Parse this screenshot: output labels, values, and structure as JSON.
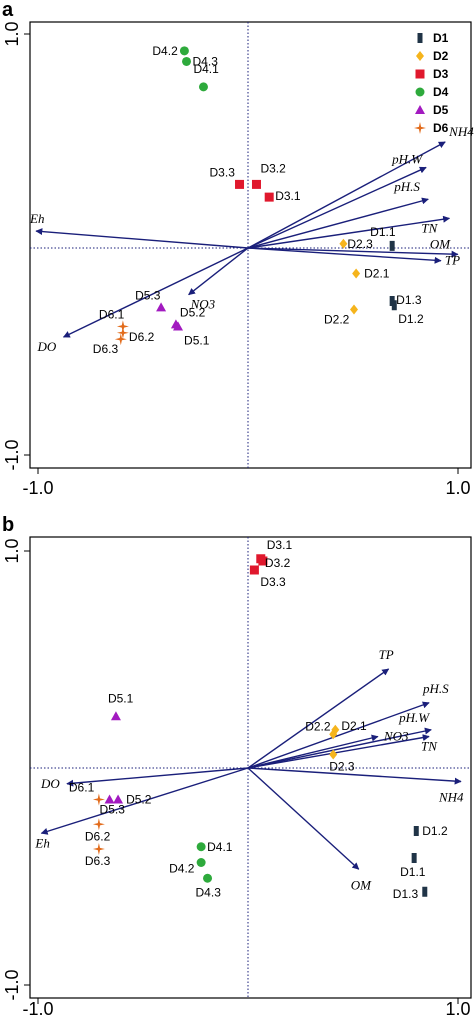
{
  "chart_data": [
    {
      "type": "scatter",
      "panel": "a",
      "xlim": [
        -1.0,
        1.0
      ],
      "ylim": [
        -1.0,
        1.0
      ],
      "xticks": [
        "-1.0",
        "1.0"
      ],
      "yticks": [
        "-1.0",
        "1.0"
      ],
      "legend": {
        "position": "top-right",
        "entries": [
          {
            "label": "D1",
            "marker": "bar",
            "color": "#203447"
          },
          {
            "label": "D2",
            "marker": "diamond",
            "color": "#f5b41c"
          },
          {
            "label": "D3",
            "marker": "square",
            "color": "#e0182d"
          },
          {
            "label": "D4",
            "marker": "circle",
            "color": "#2eaa3c"
          },
          {
            "label": "D5",
            "marker": "triangle",
            "color": "#a21ac0"
          },
          {
            "label": "D6",
            "marker": "star",
            "color": "#e26b1b"
          }
        ]
      },
      "vectors": [
        {
          "label": "NH4",
          "x": 0.93,
          "y": 0.5
        },
        {
          "label": "pH.W",
          "x": 0.84,
          "y": 0.38
        },
        {
          "label": "pH.S",
          "x": 0.85,
          "y": 0.23
        },
        {
          "label": "TN",
          "x": 0.95,
          "y": 0.14
        },
        {
          "label": "OM",
          "x": 0.99,
          "y": -0.03
        },
        {
          "label": "TP",
          "x": 0.91,
          "y": -0.06
        },
        {
          "label": "Eh",
          "x": -1.0,
          "y": 0.08
        },
        {
          "label": "DO",
          "x": -0.87,
          "y": -0.42
        },
        {
          "label": "NO3",
          "x": -0.28,
          "y": -0.22
        }
      ],
      "points": [
        {
          "label": "D1.1",
          "group": "D1",
          "x": 0.68,
          "y": 0.01
        },
        {
          "label": "D1.2",
          "group": "D1",
          "x": 0.69,
          "y": -0.27
        },
        {
          "label": "D1.3",
          "group": "D1",
          "x": 0.68,
          "y": -0.25
        },
        {
          "label": "D2.1",
          "group": "D2",
          "x": 0.51,
          "y": -0.12
        },
        {
          "label": "D2.2",
          "group": "D2",
          "x": 0.5,
          "y": -0.29
        },
        {
          "label": "D2.3",
          "group": "D2",
          "x": 0.45,
          "y": 0.02
        },
        {
          "label": "D3.1",
          "group": "D3",
          "x": 0.1,
          "y": 0.24
        },
        {
          "label": "D3.2",
          "group": "D3",
          "x": 0.04,
          "y": 0.3
        },
        {
          "label": "D3.3",
          "group": "D3",
          "x": -0.04,
          "y": 0.3
        },
        {
          "label": "D4.1",
          "group": "D4",
          "x": -0.21,
          "y": 0.76
        },
        {
          "label": "D4.2",
          "group": "D4",
          "x": -0.3,
          "y": 0.93
        },
        {
          "label": "D4.3",
          "group": "D4",
          "x": -0.29,
          "y": 0.88
        },
        {
          "label": "D5.1",
          "group": "D5",
          "x": -0.33,
          "y": -0.37
        },
        {
          "label": "D5.2",
          "group": "D5",
          "x": -0.34,
          "y": -0.36
        },
        {
          "label": "D5.3",
          "group": "D5",
          "x": -0.41,
          "y": -0.28
        },
        {
          "label": "D6.1",
          "group": "D6",
          "x": -0.59,
          "y": -0.37
        },
        {
          "label": "D6.2",
          "group": "D6",
          "x": -0.59,
          "y": -0.4
        },
        {
          "label": "D6.3",
          "group": "D6",
          "x": -0.6,
          "y": -0.43
        }
      ]
    },
    {
      "type": "scatter",
      "panel": "b",
      "xlim": [
        -1.0,
        1.0
      ],
      "ylim": [
        -1.0,
        1.0
      ],
      "xticks": [
        "-1.0",
        "1.0"
      ],
      "yticks": [
        "-1.0",
        "1.0"
      ],
      "vectors": [
        {
          "label": "TP",
          "x": 0.66,
          "y": 0.44
        },
        {
          "label": "pH.S",
          "x": 0.85,
          "y": 0.29
        },
        {
          "label": "pH.W",
          "x": 0.86,
          "y": 0.17
        },
        {
          "label": "NO3",
          "x": 0.61,
          "y": 0.14
        },
        {
          "label": "TN",
          "x": 0.85,
          "y": 0.14
        },
        {
          "label": "NH4",
          "x": 1.0,
          "y": -0.06
        },
        {
          "label": "OM",
          "x": 0.52,
          "y": -0.45
        },
        {
          "label": "DO",
          "x": -0.85,
          "y": -0.07
        },
        {
          "label": "Eh",
          "x": -0.97,
          "y": -0.29
        }
      ],
      "points": [
        {
          "label": "D1.1",
          "group": "D1",
          "x": 0.78,
          "y": -0.4
        },
        {
          "label": "D1.2",
          "group": "D1",
          "x": 0.79,
          "y": -0.28
        },
        {
          "label": "D1.3",
          "group": "D1",
          "x": 0.83,
          "y": -0.55
        },
        {
          "label": "D2.1",
          "group": "D2",
          "x": 0.41,
          "y": 0.17
        },
        {
          "label": "D2.2",
          "group": "D2",
          "x": 0.4,
          "y": 0.15
        },
        {
          "label": "D2.3",
          "group": "D2",
          "x": 0.4,
          "y": 0.06
        },
        {
          "label": "D3.1",
          "group": "D3",
          "x": 0.06,
          "y": 0.93
        },
        {
          "label": "D3.2",
          "group": "D3",
          "x": 0.07,
          "y": 0.92
        },
        {
          "label": "D3.3",
          "group": "D3",
          "x": 0.03,
          "y": 0.88
        },
        {
          "label": "D4.1",
          "group": "D4",
          "x": -0.22,
          "y": -0.35
        },
        {
          "label": "D4.2",
          "group": "D4",
          "x": -0.22,
          "y": -0.42
        },
        {
          "label": "D4.3",
          "group": "D4",
          "x": -0.19,
          "y": -0.49
        },
        {
          "label": "D5.1",
          "group": "D5",
          "x": -0.62,
          "y": 0.23
        },
        {
          "label": "D5.2",
          "group": "D5",
          "x": -0.61,
          "y": -0.14
        },
        {
          "label": "D5.3",
          "group": "D5",
          "x": -0.65,
          "y": -0.14
        },
        {
          "label": "D6.1",
          "group": "D6",
          "x": -0.7,
          "y": -0.14
        },
        {
          "label": "D6.2",
          "group": "D6",
          "x": -0.7,
          "y": -0.25
        },
        {
          "label": "D6.3",
          "group": "D6",
          "x": -0.7,
          "y": -0.36
        }
      ]
    }
  ]
}
